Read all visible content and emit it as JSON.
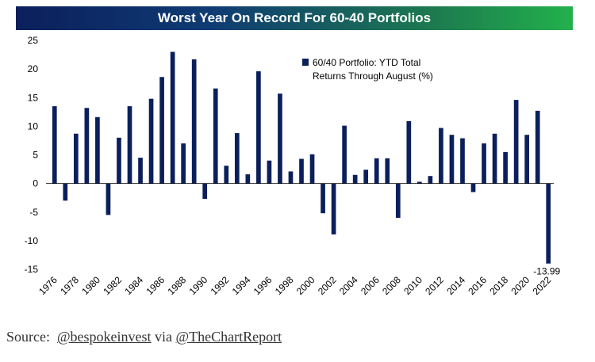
{
  "title": "Worst Year On Record For 60-40 Portfolios",
  "source": {
    "prefix": "Source:",
    "handle1": "@bespokeinvest",
    "via": "via",
    "handle2": "@TheChartReport"
  },
  "colors": {
    "bar": "#0b1f5c"
  },
  "chart_data": {
    "type": "bar",
    "legend": {
      "line1": "60/40 Portfolio: YTD Total",
      "line2": "Returns Through August (%)",
      "placement": "top-center"
    },
    "ylim": [
      -15,
      25
    ],
    "yticks": [
      -15,
      -10,
      -5,
      0,
      5,
      10,
      15,
      20,
      25
    ],
    "grid": false,
    "xtick_labels": [
      "1976",
      "1978",
      "1980",
      "1982",
      "1984",
      "1986",
      "1988",
      "1990",
      "1992",
      "1994",
      "1996",
      "1998",
      "2000",
      "2002",
      "2004",
      "2006",
      "2008",
      "2010",
      "2012",
      "2014",
      "2016",
      "2018",
      "2020",
      "2022"
    ],
    "categories": [
      1976,
      1977,
      1978,
      1979,
      1980,
      1981,
      1982,
      1983,
      1984,
      1985,
      1986,
      1987,
      1988,
      1989,
      1990,
      1991,
      1992,
      1993,
      1994,
      1995,
      1996,
      1997,
      1998,
      1999,
      2000,
      2001,
      2002,
      2003,
      2004,
      2005,
      2006,
      2007,
      2008,
      2009,
      2010,
      2011,
      2012,
      2013,
      2014,
      2015,
      2016,
      2017,
      2018,
      2019,
      2020,
      2021,
      2022
    ],
    "values": [
      13.5,
      -3.0,
      8.7,
      13.2,
      11.6,
      -5.5,
      8.0,
      13.5,
      4.5,
      14.8,
      18.6,
      23.0,
      7.0,
      21.7,
      -2.7,
      16.6,
      3.1,
      8.8,
      1.6,
      19.6,
      4.0,
      15.7,
      2.1,
      4.3,
      5.1,
      -5.2,
      -8.9,
      10.1,
      1.5,
      2.4,
      4.4,
      4.4,
      -6.0,
      10.9,
      0.3,
      1.3,
      9.7,
      8.5,
      7.9,
      -1.5,
      7.0,
      8.7,
      5.5,
      14.6,
      8.5,
      12.7,
      -13.99
    ],
    "data_label": {
      "text": "-13.99",
      "category": 2022
    }
  }
}
